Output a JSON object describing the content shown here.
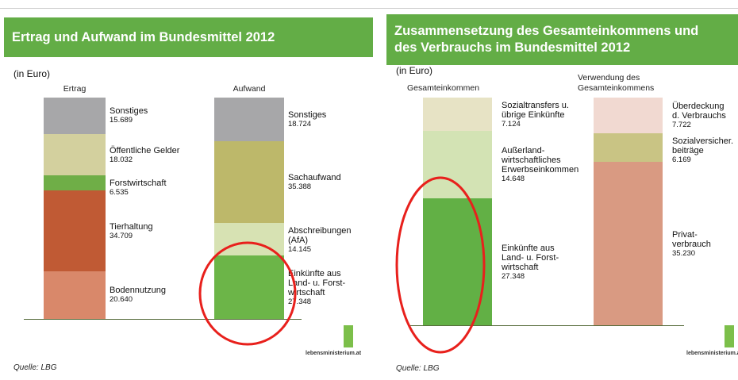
{
  "chart_data": [
    {
      "type": "stacked_bar",
      "title": "Ertrag und Aufwand im Bundesmittel 2012",
      "unit_label": "(in Euro)",
      "source": "Quelle: LBG",
      "logo_text": "lebensministerium.at",
      "bars": [
        {
          "category": "Ertrag",
          "segments": [
            {
              "name": "Bodennutzung",
              "value": 20640,
              "value_label": "20.640",
              "color": "#d9886a"
            },
            {
              "name": "Tierhaltung",
              "value": 34709,
              "value_label": "34.709",
              "color": "#c05a34"
            },
            {
              "name": "Forstwirtschaft",
              "value": 6535,
              "value_label": "6.535",
              "color": "#6fae47"
            },
            {
              "name": "Öffentliche Gelder",
              "value": 18032,
              "value_label": "18.032",
              "color": "#d3d09e"
            },
            {
              "name": "Sonstiges",
              "value": 15689,
              "value_label": "15.689",
              "color": "#a7a7a9"
            }
          ]
        },
        {
          "category": "Aufwand",
          "segments": [
            {
              "name": "Einkünfte aus\nLand- u. Forst-\nwirtschaft",
              "value": 27348,
              "value_label": "27.348",
              "color": "#6cb548"
            },
            {
              "name": "Abschreibungen\n(AfA)",
              "value": 14145,
              "value_label": "14.145",
              "color": "#d7e2b3"
            },
            {
              "name": "Sachaufwand",
              "value": 35388,
              "value_label": "35.388",
              "color": "#bdb86a"
            },
            {
              "name": "Sonstiges",
              "value": 18724,
              "value_label": "18.724",
              "color": "#a7a7a9"
            }
          ]
        }
      ]
    },
    {
      "type": "stacked_bar",
      "title": "Zusammensetzung des Gesamteinkommens und\ndes Verbrauchs im Bundesmittel 2012",
      "unit_label": "(in Euro)",
      "source": "Quelle: LBG",
      "logo_text": "lebensministerium.at",
      "bars": [
        {
          "category": "Gesamteinkommen",
          "segments": [
            {
              "name": "Einkünfte aus\nLand- u. Forst-\nwirtschaft",
              "value": 27348,
              "value_label": "27.348",
              "color": "#62b045"
            },
            {
              "name": "Außerland-\nwirtschaftliches\nErwerbseinkommen",
              "value": 14648,
              "value_label": "14.648",
              "color": "#d3e3b4"
            },
            {
              "name": "Sozialtransfers u.\nübrige Einkünfte",
              "value": 7124,
              "value_label": "7.124",
              "color": "#e7e3c5"
            }
          ]
        },
        {
          "category": "Verwendung des\nGesamteinkommens",
          "segments": [
            {
              "name": "Privat-\nverbrauch",
              "value": 35230,
              "value_label": "35.230",
              "color": "#d99a82"
            },
            {
              "name": "Sozialversicher.\nbeiträge",
              "value": 6169,
              "value_label": "6.169",
              "color": "#c9c484"
            },
            {
              "name": "Überdeckung\nd. Verbrauchs",
              "value": 7722,
              "value_label": "7.722",
              "color": "#f1d9d1"
            }
          ]
        }
      ]
    }
  ]
}
